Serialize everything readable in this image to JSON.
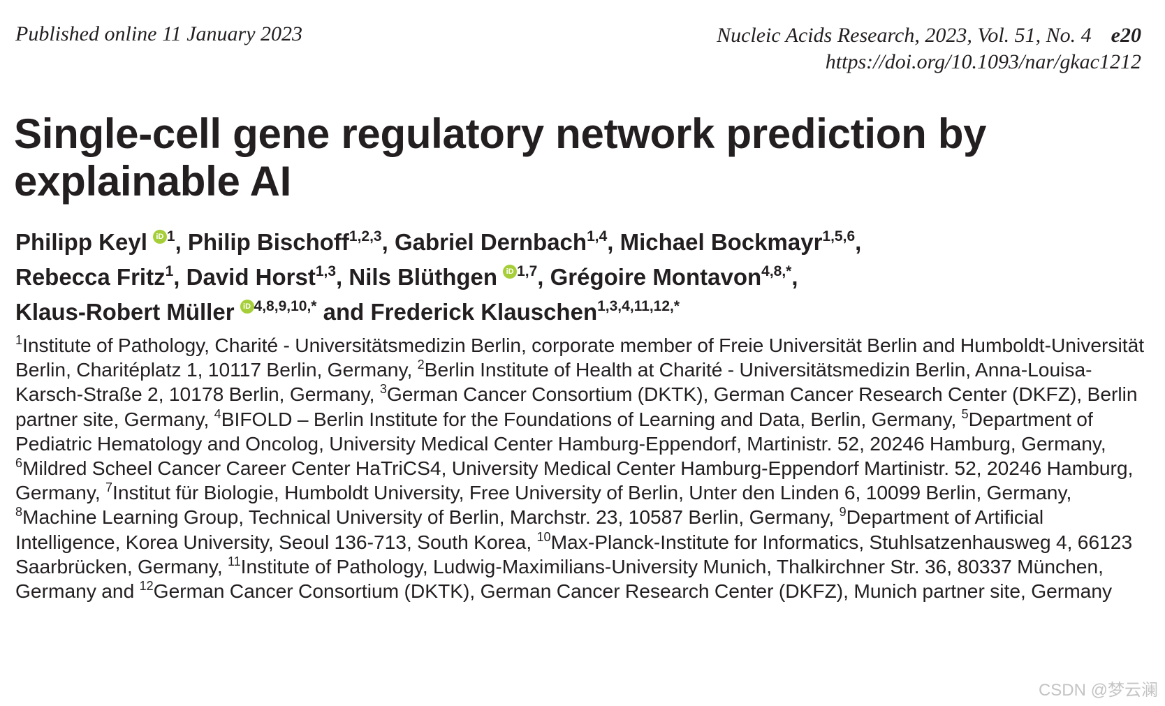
{
  "header": {
    "published": "Published online 11 January 2023",
    "journal": "Nucleic Acids Research, 2023, Vol. 51, No. 4",
    "page": "e20",
    "doi": "https://doi.org/10.1093/nar/gkac1212"
  },
  "title": "Single-cell gene regulatory network prediction by explainable AI",
  "orcid_icon_text": "iD",
  "authors": [
    {
      "name": "Philipp Keyl",
      "orcid": true,
      "sup": "1",
      "sep": ", "
    },
    {
      "name": "Philip Bischoff",
      "orcid": false,
      "sup": "1,2,3",
      "sep": ", "
    },
    {
      "name": "Gabriel Dernbach",
      "orcid": false,
      "sup": "1,4",
      "sep": ", "
    },
    {
      "name": "Michael Bockmayr",
      "orcid": false,
      "sup": "1,5,6",
      "sep": ", "
    },
    {
      "name": "Rebecca Fritz",
      "orcid": false,
      "sup": "1",
      "sep": ", "
    },
    {
      "name": "David Horst",
      "orcid": false,
      "sup": "1,3",
      "sep": ", "
    },
    {
      "name": "Nils Blüthgen",
      "orcid": true,
      "sup": "1,7",
      "sep": ", "
    },
    {
      "name": "Grégoire Montavon",
      "orcid": false,
      "sup": "4,8,*",
      "sep": ", "
    },
    {
      "name": "Klaus-Robert Müller",
      "orcid": true,
      "sup": "4,8,9,10,*",
      "sep": " and "
    },
    {
      "name": "Frederick Klauschen",
      "orcid": false,
      "sup": "1,3,4,11,12,*",
      "sep": ""
    }
  ],
  "affiliations": [
    {
      "num": "1",
      "text": "Institute of Pathology, Charité - Universitätsmedizin Berlin, corporate member of Freie Universität Berlin and Humboldt-Universität Berlin, Charitéplatz 1, 10117 Berlin, Germany",
      "sep": ", "
    },
    {
      "num": "2",
      "text": "Berlin Institute of Health at Charité - Universitätsmedizin Berlin, Anna-Louisa-Karsch-Straße 2, 10178 Berlin, Germany",
      "sep": ", "
    },
    {
      "num": "3",
      "text": "German Cancer Consortium (DKTK), German Cancer Research Center (DKFZ), Berlin partner site, Germany",
      "sep": ", "
    },
    {
      "num": "4",
      "text": "BIFOLD – Berlin Institute for the Foundations of Learning and Data, Berlin, Germany",
      "sep": ", "
    },
    {
      "num": "5",
      "text": "Department of Pediatric Hematology and Oncolog, University Medical Center Hamburg-Eppendorf, Martinistr. 52, 20246 Hamburg, Germany",
      "sep": ", "
    },
    {
      "num": "6",
      "text": "Mildred Scheel Cancer Career Center HaTriCS4, University Medical Center Hamburg-Eppendorf Martinistr. 52, 20246 Hamburg, Germany",
      "sep": ", "
    },
    {
      "num": "7",
      "text": "Institut für Biologie, Humboldt University, Free University of Berlin, Unter den Linden 6, 10099 Berlin, Germany",
      "sep": ", "
    },
    {
      "num": "8",
      "text": "Machine Learning Group, Technical University of Berlin, Marchstr. 23, 10587 Berlin, Germany",
      "sep": ", "
    },
    {
      "num": "9",
      "text": "Department of Artificial Intelligence, Korea University, Seoul 136-713, South Korea",
      "sep": ", "
    },
    {
      "num": "10",
      "text": "Max-Planck-Institute for Informatics, Stuhlsatzenhausweg 4, 66123 Saarbrücken, Germany",
      "sep": ", "
    },
    {
      "num": "11",
      "text": "Institute of Pathology, Ludwig-Maximilians-University Munich, Thalkirchner Str. 36, 80337 München, Germany",
      "sep": " and "
    },
    {
      "num": "12",
      "text": "German Cancer Consortium (DKTK), German Cancer Research Center (DKFZ), Munich partner site, Germany",
      "sep": ""
    }
  ],
  "watermark": "CSDN @梦云澜"
}
